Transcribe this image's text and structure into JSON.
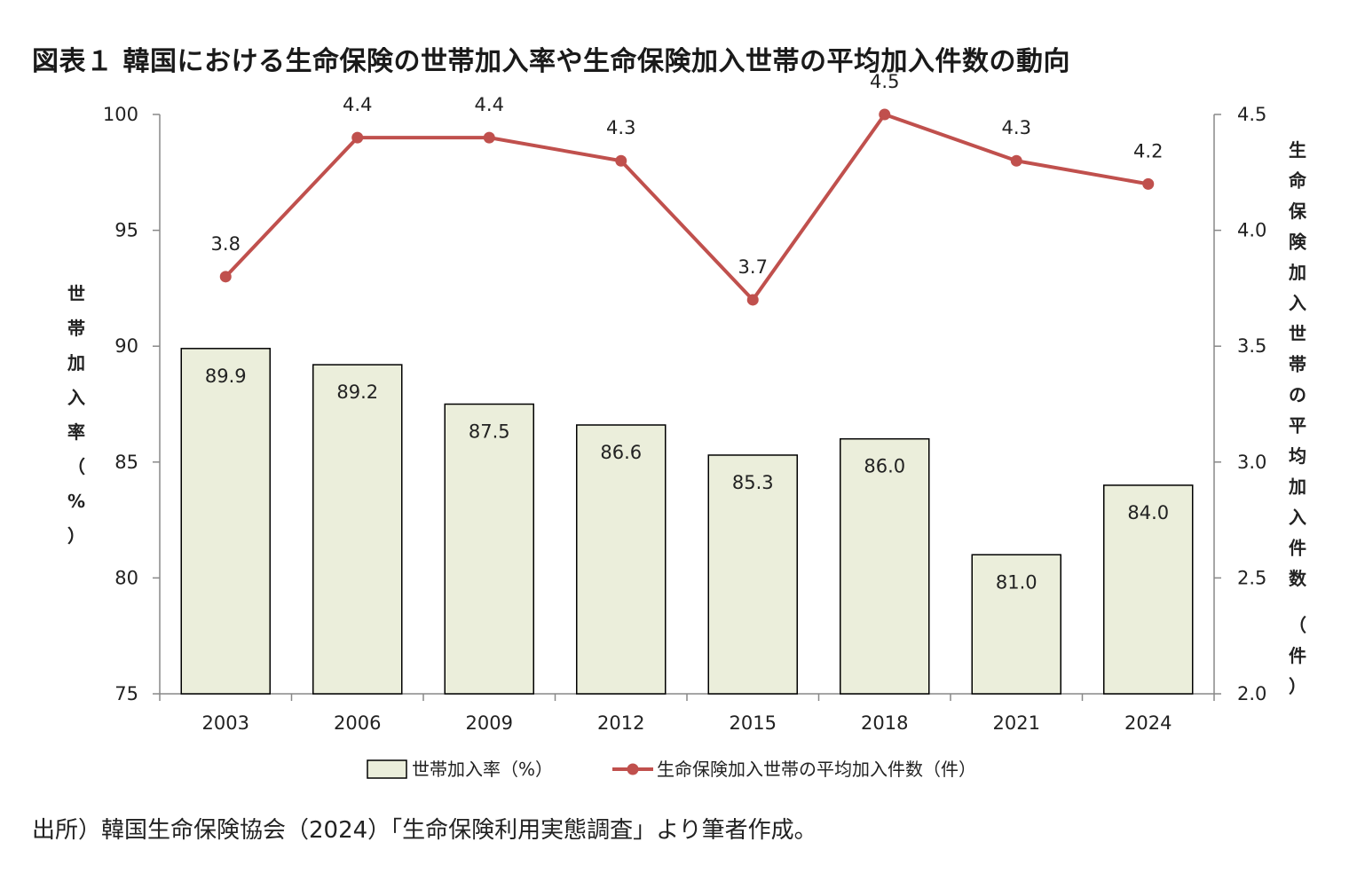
{
  "title": "図表１ 韓国における生命保険の世帯加入率や生命保険加入世帯の平均加入件数の動向",
  "source": "出所）韓国生命保険協会（2024）「生命保険利用実態調査」より筆者作成。",
  "chart_data": {
    "type": "bar+line",
    "categories": [
      "2003",
      "2006",
      "2009",
      "2012",
      "2015",
      "2018",
      "2021",
      "2024"
    ],
    "series": [
      {
        "name": "世帯加入率（%）",
        "type": "bar",
        "axis": "left",
        "values": [
          89.9,
          89.2,
          87.5,
          86.6,
          85.3,
          86.0,
          81.0,
          84.0
        ],
        "labels": [
          "89.9",
          "89.2",
          "87.5",
          "86.6",
          "85.3",
          "86.0",
          "81.0",
          "84.0"
        ],
        "color": "#ebeedb"
      },
      {
        "name": "生命保険加入世帯の平均加入件数（件）",
        "type": "line",
        "axis": "right",
        "values": [
          3.8,
          4.4,
          4.4,
          4.3,
          3.7,
          4.5,
          4.3,
          4.2
        ],
        "labels": [
          "3.8",
          "4.4",
          "4.4",
          "4.3",
          "3.7",
          "4.5",
          "4.3",
          "4.2"
        ],
        "color": "#c0504d"
      }
    ],
    "y_left": {
      "label": "世帯加入率（％）",
      "label_chars": [
        "世",
        "帯",
        "加",
        "入",
        "率",
        "（",
        "%",
        "）"
      ],
      "ylim": [
        75,
        100
      ],
      "ticks": [
        "75",
        "80",
        "85",
        "90",
        "95",
        "100"
      ]
    },
    "y_right": {
      "label": "生命保険加入世帯の平均加入件数（件）",
      "label_chars": [
        "生",
        "命",
        "保",
        "険",
        "加",
        "入",
        "世",
        "帯",
        "の",
        "平",
        "均",
        "加",
        "入",
        "件",
        "数",
        "（",
        "件",
        "）"
      ],
      "ylim": [
        2.0,
        4.5
      ],
      "ticks": [
        "2.0",
        "2.5",
        "3.0",
        "3.5",
        "4.0",
        "4.5"
      ]
    },
    "legend": [
      "世帯加入率（%）",
      "生命保険加入世帯の平均加入件数（件）"
    ],
    "legend_position": "bottom-center",
    "grid": false
  }
}
